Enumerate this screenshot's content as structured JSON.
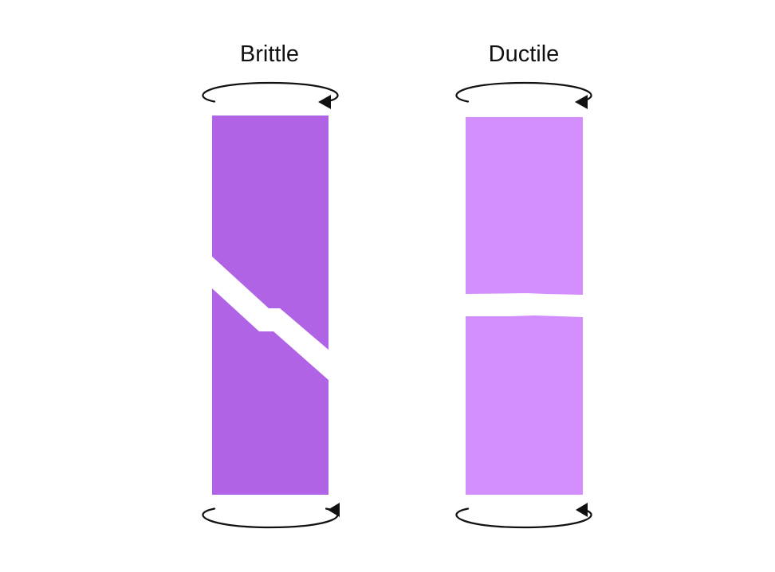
{
  "labels": {
    "brittle": "Brittle",
    "ductile": "Ductile"
  },
  "colors": {
    "brittle_fill": "#B063E4",
    "ductile_fill": "#D28EFC",
    "arrow": "#111111",
    "background": "#FFFFFF"
  },
  "icons": {
    "torsion_top": "curved-rotation-arrow",
    "torsion_bottom": "curved-rotation-arrow"
  }
}
